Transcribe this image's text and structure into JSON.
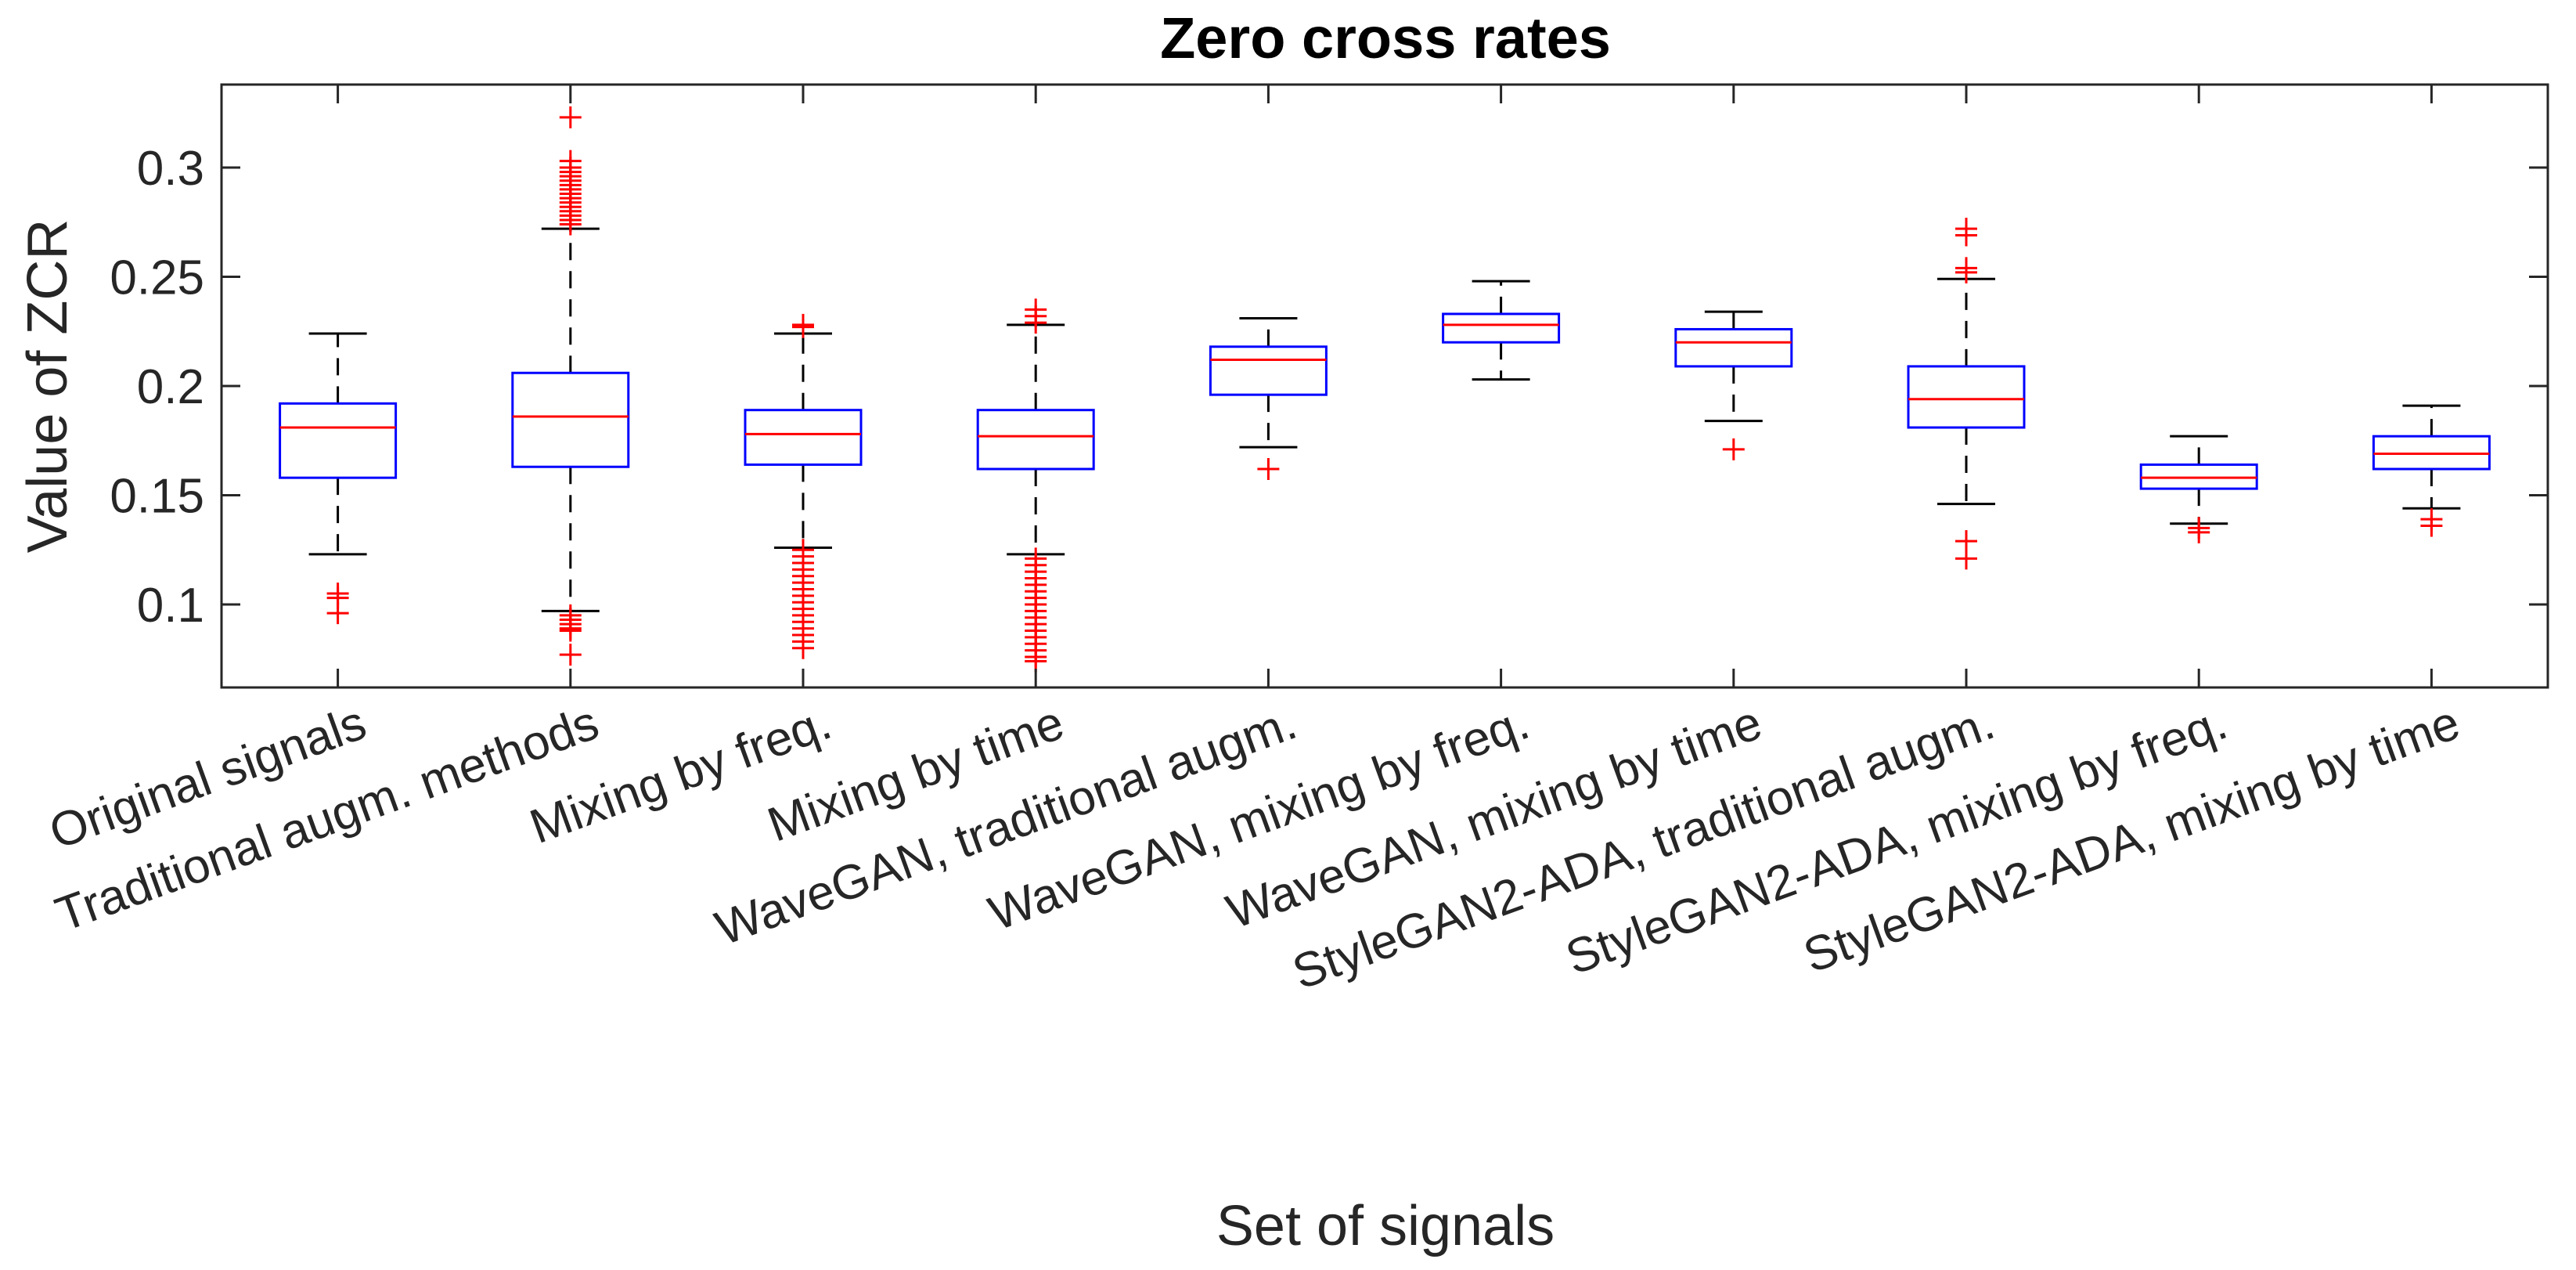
{
  "chart_data": {
    "type": "boxplot",
    "title": "Zero cross rates",
    "xlabel": "Set of signals",
    "ylabel": "Value of  ZCR",
    "ylim": [
      0.062,
      0.338
    ],
    "yticks": [
      0.1,
      0.15,
      0.2,
      0.25,
      0.3
    ],
    "ytick_labels": [
      "0.1",
      "0.15",
      "0.2",
      "0.25",
      "0.3"
    ],
    "colors": {
      "box": "#0000ff",
      "median": "#ff0000",
      "whisker": "#000000",
      "outlier": "#ff0000"
    },
    "groups": [
      {
        "label": "Original signals",
        "q1": 0.158,
        "median": 0.181,
        "q3": 0.192,
        "whisker_low": 0.123,
        "whisker_high": 0.224,
        "outliers": [
          0.105,
          0.103,
          0.096
        ]
      },
      {
        "label": "Traditional augm. methods",
        "q1": 0.163,
        "median": 0.186,
        "q3": 0.206,
        "whisker_low": 0.097,
        "whisker_high": 0.272,
        "outliers": [
          0.323,
          0.303,
          0.3,
          0.298,
          0.296,
          0.294,
          0.292,
          0.29,
          0.288,
          0.286,
          0.284,
          0.282,
          0.28,
          0.278,
          0.276,
          0.274,
          0.095,
          0.093,
          0.091,
          0.089,
          0.088,
          0.077
        ]
      },
      {
        "label": "Mixing by freq.",
        "q1": 0.164,
        "median": 0.178,
        "q3": 0.189,
        "whisker_low": 0.126,
        "whisker_high": 0.224,
        "outliers": [
          0.228,
          0.227,
          0.125,
          0.122,
          0.119,
          0.116,
          0.113,
          0.11,
          0.107,
          0.104,
          0.101,
          0.098,
          0.095,
          0.092,
          0.089,
          0.086,
          0.083,
          0.08
        ]
      },
      {
        "label": "Mixing by time",
        "q1": 0.162,
        "median": 0.177,
        "q3": 0.189,
        "whisker_low": 0.123,
        "whisker_high": 0.228,
        "outliers": [
          0.235,
          0.232,
          0.229,
          0.121,
          0.118,
          0.115,
          0.112,
          0.109,
          0.106,
          0.103,
          0.1,
          0.097,
          0.094,
          0.091,
          0.088,
          0.085,
          0.082,
          0.079,
          0.076,
          0.074
        ]
      },
      {
        "label": "WaveGAN, traditional augm.",
        "q1": 0.196,
        "median": 0.212,
        "q3": 0.218,
        "whisker_low": 0.172,
        "whisker_high": 0.231,
        "outliers": [
          0.162
        ]
      },
      {
        "label": "WaveGAN, mixing by freq.",
        "q1": 0.22,
        "median": 0.228,
        "q3": 0.233,
        "whisker_low": 0.203,
        "whisker_high": 0.248,
        "outliers": []
      },
      {
        "label": "WaveGAN, mixing by time",
        "q1": 0.209,
        "median": 0.22,
        "q3": 0.226,
        "whisker_low": 0.184,
        "whisker_high": 0.234,
        "outliers": [
          0.171
        ]
      },
      {
        "label": "StyleGAN2-ADA, traditional augm.",
        "q1": 0.181,
        "median": 0.194,
        "q3": 0.209,
        "whisker_low": 0.146,
        "whisker_high": 0.249,
        "outliers": [
          0.272,
          0.269,
          0.254,
          0.252,
          0.129,
          0.121
        ]
      },
      {
        "label": "StyleGAN2-ADA, mixing by freq.",
        "q1": 0.153,
        "median": 0.158,
        "q3": 0.164,
        "whisker_low": 0.137,
        "whisker_high": 0.177,
        "outliers": [
          0.135,
          0.133
        ]
      },
      {
        "label": "StyleGAN2-ADA, mixing by time",
        "q1": 0.162,
        "median": 0.169,
        "q3": 0.177,
        "whisker_low": 0.144,
        "whisker_high": 0.191,
        "outliers": [
          0.139,
          0.136
        ]
      }
    ]
  }
}
